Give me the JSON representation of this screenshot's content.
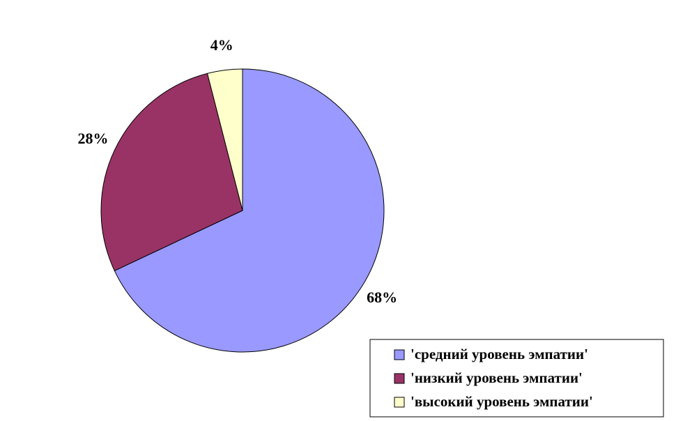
{
  "chart_data": {
    "type": "pie",
    "categories": [
      "'средний уровень эмпатии'",
      "'низкий уровень эмпатии'",
      "'высокий уровень эмпатии'"
    ],
    "values": [
      68,
      28,
      4
    ],
    "value_labels": [
      "68%",
      "28%",
      "4%"
    ],
    "colors": [
      "#9999ff",
      "#993366",
      "#ffffcc"
    ],
    "legend": "bottom-right"
  }
}
